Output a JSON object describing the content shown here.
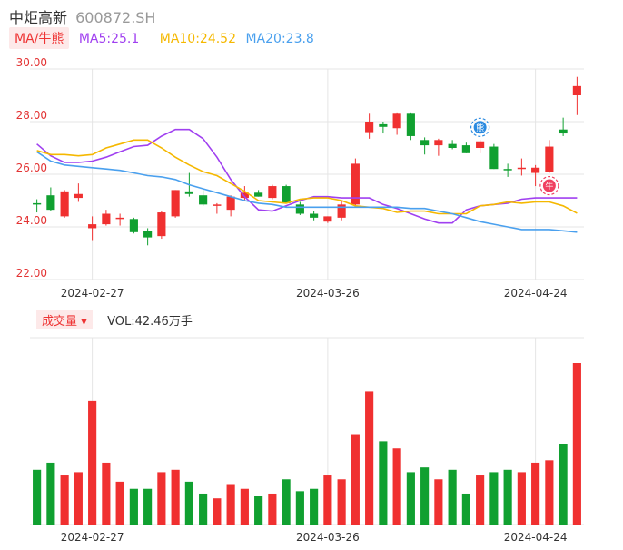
{
  "header": {
    "name": "中炬高新",
    "code": "600872.SH"
  },
  "ma_legend": {
    "tag": "MA/牛熊",
    "items": [
      {
        "label": "MA5:25.1",
        "color": "#a040f0"
      },
      {
        "label": "MA10:24.52",
        "color": "#f5b800"
      },
      {
        "label": "MA20:23.8",
        "color": "#4aa0ee"
      }
    ]
  },
  "volume_legend": {
    "tag": "成交量",
    "text": "VOL:42.46万手"
  },
  "colors": {
    "up": "#f03030",
    "down": "#10a030",
    "grid": "#e5e5e5",
    "price_axis": "#e33333",
    "vol_axis": "#2ea02e",
    "date_axis": "#333333"
  },
  "badges": [
    {
      "label": "熊",
      "index": 32,
      "color": "#2a8ae0",
      "icon": "bear-badge-icon"
    },
    {
      "label": "牛",
      "index": 37,
      "color": "#f04060",
      "icon": "bull-badge-icon"
    }
  ],
  "chart_data": {
    "type": "candlestick",
    "y_ticks": [
      "30.00",
      "28.00",
      "26.00",
      "24.00",
      "22.00"
    ],
    "ylim": [
      22,
      30
    ],
    "date_ticks": [
      {
        "label": "2024-02-27",
        "index": 4
      },
      {
        "label": "2024-03-26",
        "index": 21
      },
      {
        "label": "2024-04-24",
        "index": 36
      }
    ],
    "ohlc": [
      [
        24.9,
        25.05,
        24.55,
        24.85
      ],
      [
        25.2,
        25.5,
        24.6,
        24.65
      ],
      [
        24.4,
        25.4,
        24.35,
        25.35
      ],
      [
        25.1,
        25.65,
        24.95,
        25.25
      ],
      [
        23.95,
        24.4,
        23.5,
        24.1
      ],
      [
        24.1,
        24.65,
        24.05,
        24.5
      ],
      [
        24.3,
        24.5,
        24.05,
        24.35
      ],
      [
        24.3,
        24.35,
        23.75,
        23.8
      ],
      [
        23.85,
        23.95,
        23.3,
        23.6
      ],
      [
        23.65,
        24.6,
        23.55,
        24.55
      ],
      [
        24.4,
        25.4,
        24.35,
        25.4
      ],
      [
        25.35,
        26.05,
        25.15,
        25.25
      ],
      [
        25.2,
        25.4,
        24.8,
        24.85
      ],
      [
        24.8,
        24.9,
        24.5,
        24.85
      ],
      [
        24.65,
        25.2,
        24.4,
        25.15
      ],
      [
        25.1,
        25.55,
        25.0,
        25.3
      ],
      [
        25.3,
        25.4,
        25.15,
        25.15
      ],
      [
        25.1,
        25.6,
        25.05,
        25.55
      ],
      [
        25.55,
        25.6,
        24.9,
        24.9
      ],
      [
        24.85,
        24.95,
        24.45,
        24.5
      ],
      [
        24.5,
        24.6,
        24.25,
        24.35
      ],
      [
        24.2,
        24.4,
        24.15,
        24.4
      ],
      [
        24.35,
        25.0,
        24.25,
        24.85
      ],
      [
        24.85,
        26.6,
        24.75,
        26.4
      ],
      [
        27.6,
        28.3,
        27.35,
        28.0
      ],
      [
        27.9,
        28.0,
        27.55,
        27.8
      ],
      [
        27.75,
        28.35,
        27.5,
        28.3
      ],
      [
        28.3,
        28.35,
        27.3,
        27.45
      ],
      [
        27.3,
        27.4,
        26.75,
        27.1
      ],
      [
        27.1,
        27.35,
        26.7,
        27.3
      ],
      [
        27.15,
        27.3,
        26.95,
        27.0
      ],
      [
        27.1,
        27.2,
        26.8,
        26.8
      ],
      [
        27.0,
        27.3,
        26.8,
        27.25
      ],
      [
        27.05,
        27.15,
        26.2,
        26.2
      ],
      [
        26.2,
        26.4,
        25.9,
        26.15
      ],
      [
        26.2,
        26.6,
        25.95,
        26.25
      ],
      [
        26.05,
        26.35,
        25.55,
        26.25
      ],
      [
        26.1,
        27.3,
        26.05,
        27.05
      ],
      [
        27.7,
        28.15,
        27.45,
        27.55
      ],
      [
        29.0,
        29.7,
        28.25,
        29.35
      ]
    ],
    "volume": [
      23,
      26,
      21,
      22,
      52,
      26,
      18,
      15,
      15,
      22,
      23,
      18,
      13,
      11,
      17,
      15,
      12,
      13,
      19,
      14,
      15,
      21,
      19,
      38,
      56,
      35,
      32,
      22,
      24,
      19,
      23,
      13,
      21,
      22,
      23,
      22,
      26,
      27,
      34,
      68
    ],
    "series": [
      {
        "name": "MA5",
        "color": "#a040f0",
        "values": [
          27.15,
          26.7,
          26.45,
          26.45,
          26.5,
          26.65,
          26.85,
          27.05,
          27.1,
          27.45,
          27.7,
          27.7,
          27.35,
          26.65,
          25.8,
          25.15,
          24.65,
          24.6,
          24.8,
          25.0,
          25.15,
          25.15,
          25.1,
          25.1,
          25.1,
          24.85,
          24.7,
          24.5,
          24.3,
          24.15,
          24.15,
          24.65,
          24.8,
          24.85,
          24.9,
          25.05,
          25.1,
          25.1,
          25.1,
          25.1
        ]
      },
      {
        "name": "MA10",
        "color": "#f5b800",
        "values": [
          26.9,
          26.75,
          26.75,
          26.7,
          26.75,
          27.0,
          27.15,
          27.3,
          27.3,
          27.0,
          26.65,
          26.35,
          26.1,
          25.95,
          25.65,
          25.35,
          25.0,
          24.95,
          24.9,
          25.05,
          25.1,
          25.1,
          25.0,
          24.8,
          24.75,
          24.7,
          24.55,
          24.6,
          24.6,
          24.5,
          24.5,
          24.5,
          24.8,
          24.85,
          24.95,
          24.9,
          24.95,
          24.95,
          24.8,
          24.52
        ]
      },
      {
        "name": "MA20",
        "color": "#4aa0ee",
        "values": [
          26.85,
          26.5,
          26.35,
          26.3,
          26.25,
          26.2,
          26.15,
          26.05,
          25.95,
          25.9,
          25.8,
          25.6,
          25.45,
          25.3,
          25.15,
          25.0,
          24.9,
          24.85,
          24.75,
          24.75,
          24.75,
          24.75,
          24.75,
          24.75,
          24.75,
          24.75,
          24.75,
          24.7,
          24.7,
          24.6,
          24.5,
          24.35,
          24.2,
          24.1,
          24.0,
          23.9,
          23.9,
          23.9,
          23.85,
          23.8
        ]
      }
    ]
  }
}
